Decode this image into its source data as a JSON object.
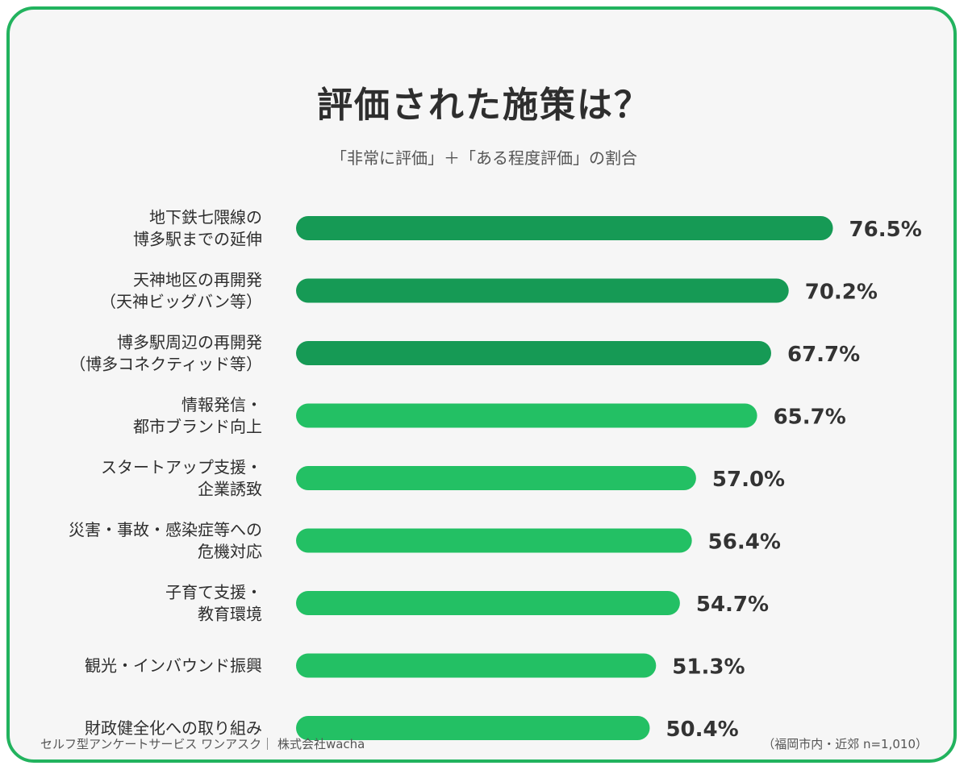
{
  "title": "評価された施策は？",
  "subtitle": "「非常に評価」＋「ある程度評価」の割合",
  "footer": {
    "source": "セルフ型アンケートサービス ワンアスク｜ 株式会社wacha",
    "sample": "（福岡市内・近郊 n=1,010）"
  },
  "colors": {
    "frame": "#22b35e",
    "bar_dark": "#169a55",
    "bar_light": "#23c064"
  },
  "chart_data": {
    "type": "bar",
    "orientation": "horizontal",
    "unit": "%",
    "categories": [
      [
        "地下鉄七隈線の",
        "博多駅までの延伸"
      ],
      [
        "天神地区の再開発",
        "（天神ビッグバン等）"
      ],
      [
        "博多駅周辺の再開発",
        "（博多コネクティッド等）"
      ],
      [
        "情報発信・",
        "都市ブランド向上"
      ],
      [
        "スタートアップ支援・",
        "企業誘致"
      ],
      [
        "災害・事故・感染症等への",
        "危機対応"
      ],
      [
        "子育て支援・",
        "教育環境"
      ],
      [
        "観光・インバウンド振興"
      ],
      [
        "財政健全化への取り組み"
      ]
    ],
    "values": [
      76.5,
      70.2,
      67.7,
      65.7,
      57.0,
      56.4,
      54.7,
      51.3,
      50.4
    ],
    "value_labels": [
      "76.5%",
      "70.2%",
      "67.7%",
      "65.7%",
      "57.0%",
      "56.4%",
      "54.7%",
      "51.3%",
      "50.4%"
    ],
    "highlight_top": 3,
    "xlim": [
      0,
      100
    ],
    "grid": false,
    "legend": "none"
  }
}
